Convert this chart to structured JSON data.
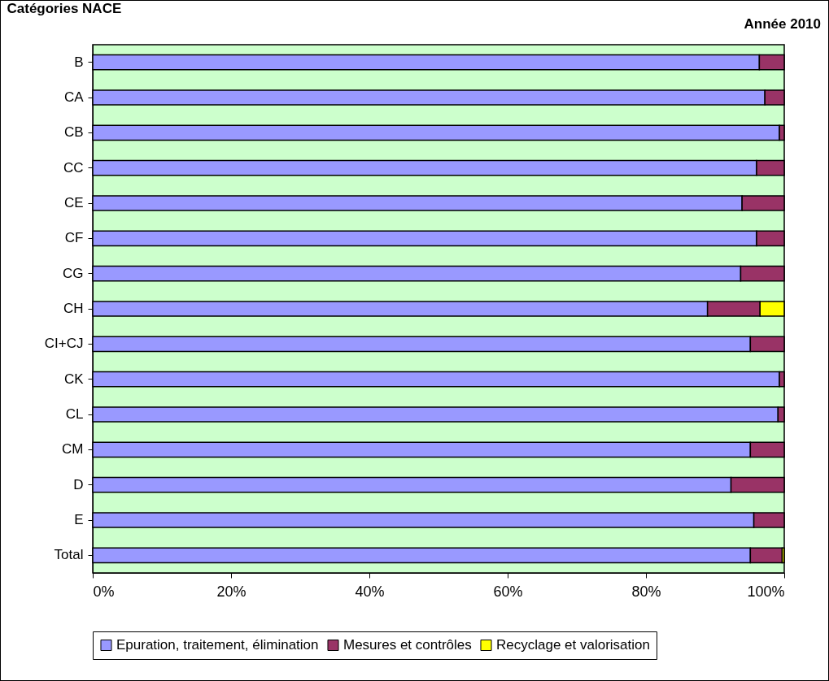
{
  "chart_data": {
    "type": "bar",
    "orientation": "horizontal",
    "stacked": true,
    "title": "Année 2010",
    "ylabel": "Catégories NACE",
    "categories": [
      "B",
      "CA",
      "CB",
      "CC",
      "CE",
      "CF",
      "CG",
      "CH",
      "CI+CJ",
      "CK",
      "CL",
      "CM",
      "D",
      "E",
      "Total"
    ],
    "series": [
      {
        "name": "Epuration, traitement, élimination",
        "color": "#9999ff",
        "values": [
          96.4,
          97.2,
          99.3,
          96.0,
          93.9,
          96.0,
          93.7,
          88.9,
          95.1,
          99.3,
          99.1,
          95.1,
          92.3,
          95.6,
          95.1
        ]
      },
      {
        "name": "Mesures et contrôles",
        "color": "#993366",
        "values": [
          3.6,
          2.8,
          0.7,
          4.0,
          6.1,
          4.0,
          6.3,
          7.6,
          4.9,
          0.7,
          0.9,
          4.9,
          7.7,
          4.4,
          4.6
        ]
      },
      {
        "name": "Recyclage et valorisation",
        "color": "#ffff00",
        "values": [
          0,
          0,
          0,
          0,
          0,
          0,
          0,
          3.5,
          0,
          0,
          0,
          0,
          0,
          0,
          0.3
        ]
      }
    ],
    "xlim": [
      0,
      100
    ],
    "xticks": [
      {
        "value": 0,
        "label": "0%"
      },
      {
        "value": 20,
        "label": "20%"
      },
      {
        "value": 40,
        "label": "40%"
      },
      {
        "value": 60,
        "label": "60%"
      },
      {
        "value": 80,
        "label": "80%"
      },
      {
        "value": 100,
        "label": "100%"
      }
    ],
    "grid": false,
    "legend": "bottom"
  }
}
